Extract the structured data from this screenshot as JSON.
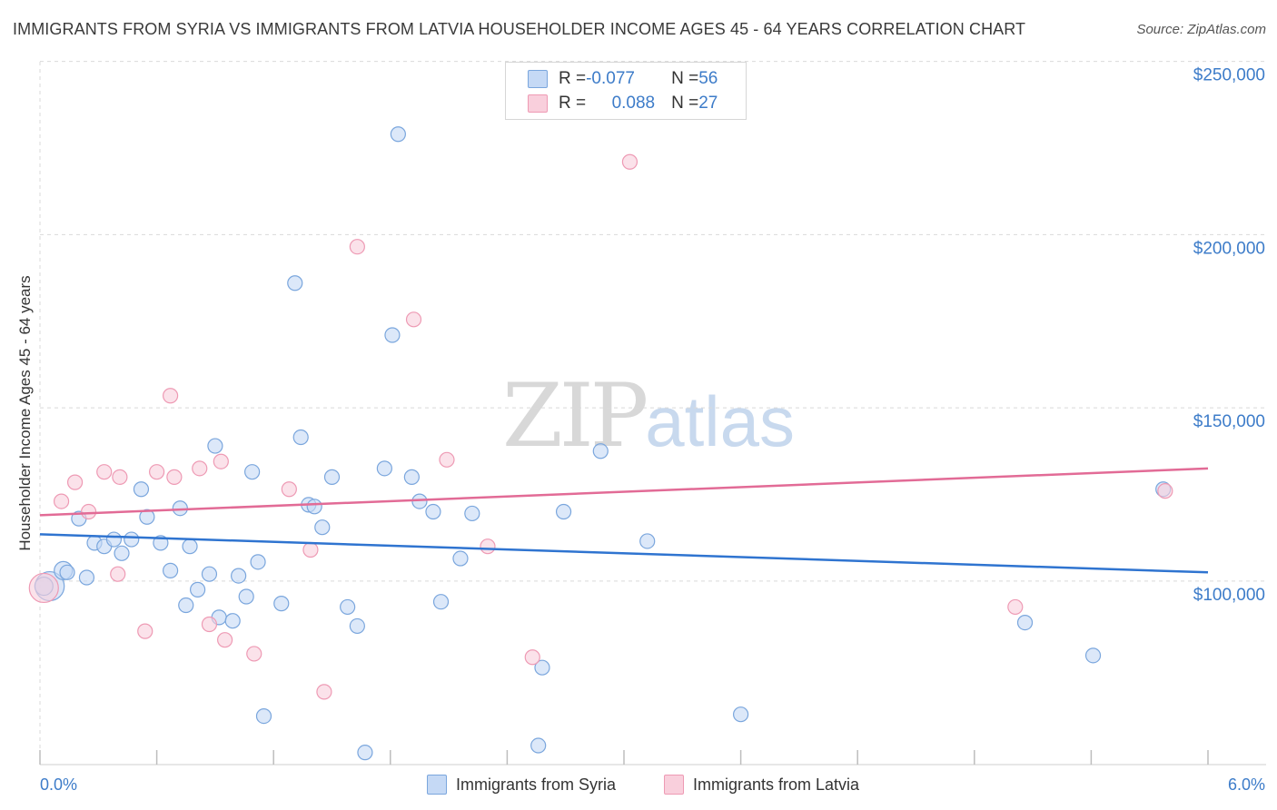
{
  "title": "IMMIGRANTS FROM SYRIA VS IMMIGRANTS FROM LATVIA HOUSEHOLDER INCOME AGES 45 - 64 YEARS CORRELATION CHART",
  "source": "Source: ZipAtlas.com",
  "watermark": {
    "zip": "ZIP",
    "atlas": "atlas"
  },
  "legend": {
    "rows": [
      {
        "r_label": "R = ",
        "r_value": "-0.077",
        "n_label": "N = ",
        "n_value": "56"
      },
      {
        "r_label": "R = ",
        "r_value": "0.088",
        "n_label": "N = ",
        "n_value": "27"
      }
    ]
  },
  "colors": {
    "syria_fill": "#c5d9f5",
    "syria_stroke": "#7aa6dd",
    "syria_line": "#2f74d0",
    "latvia_fill": "#f9cfdc",
    "latvia_stroke": "#ee9ab4",
    "latvia_line": "#e26b96",
    "grid": "#d9d9d9",
    "tick_text": "#3d7cc9"
  },
  "chart_data": {
    "type": "scatter",
    "title": "IMMIGRANTS FROM SYRIA VS IMMIGRANTS FROM LATVIA HOUSEHOLDER INCOME AGES 45 - 64 YEARS CORRELATION CHART",
    "xlabel": "",
    "ylabel": "Householder Income Ages 45 - 64 years",
    "xlim": [
      0.0,
      6.0
    ],
    "ylim": [
      47000,
      252000
    ],
    "x_tick_labels": [
      "0.0%",
      "6.0%"
    ],
    "y_ticks": [
      100000,
      150000,
      200000,
      250000
    ],
    "y_tick_labels": [
      "$100,000",
      "$150,000",
      "$200,000",
      "$250,000"
    ],
    "grid": true,
    "legend_position": "top-center",
    "series": [
      {
        "name": "Immigrants from Syria",
        "color": "#7aa6dd",
        "trend": [
          [
            0.0,
            113500
          ],
          [
            6.0,
            102500
          ]
        ],
        "points": [
          [
            0.05,
            98.5,
            16
          ],
          [
            0.12,
            103,
            10
          ],
          [
            0.14,
            102.5,
            8
          ],
          [
            0.2,
            118,
            8
          ],
          [
            0.24,
            101,
            8
          ],
          [
            0.28,
            111,
            8
          ],
          [
            0.33,
            110,
            8
          ],
          [
            0.38,
            112,
            8
          ],
          [
            0.42,
            108,
            8
          ],
          [
            0.47,
            112,
            8
          ],
          [
            0.52,
            126.5,
            8
          ],
          [
            0.55,
            118.5,
            8
          ],
          [
            0.62,
            111,
            8
          ],
          [
            0.67,
            103,
            8
          ],
          [
            0.72,
            121,
            8
          ],
          [
            0.75,
            93,
            8
          ],
          [
            0.77,
            110,
            8
          ],
          [
            0.81,
            97.5,
            8
          ],
          [
            0.87,
            102,
            8
          ],
          [
            0.9,
            139,
            8
          ],
          [
            0.92,
            89.5,
            8
          ],
          [
            0.99,
            88.5,
            8
          ],
          [
            1.02,
            101.5,
            8
          ],
          [
            1.06,
            95.5,
            8
          ],
          [
            1.09,
            131.5,
            8
          ],
          [
            1.12,
            105.5,
            8
          ],
          [
            1.15,
            61,
            8
          ],
          [
            1.24,
            93.5,
            8
          ],
          [
            1.31,
            186,
            8
          ],
          [
            1.34,
            141.5,
            8
          ],
          [
            1.38,
            122,
            8
          ],
          [
            1.41,
            121.5,
            8
          ],
          [
            1.45,
            115.5,
            8
          ],
          [
            1.5,
            130,
            8
          ],
          [
            1.58,
            92.5,
            8
          ],
          [
            1.63,
            87,
            8
          ],
          [
            1.67,
            50.5,
            8
          ],
          [
            1.77,
            132.5,
            8
          ],
          [
            1.81,
            171,
            8
          ],
          [
            1.84,
            229,
            8
          ],
          [
            1.91,
            130,
            8
          ],
          [
            1.95,
            123,
            8
          ],
          [
            2.02,
            120,
            8
          ],
          [
            2.06,
            94,
            8
          ],
          [
            2.16,
            106.5,
            8
          ],
          [
            2.22,
            119.5,
            8
          ],
          [
            2.56,
            52.5,
            8
          ],
          [
            2.58,
            75,
            8
          ],
          [
            2.69,
            120,
            8
          ],
          [
            2.88,
            137.5,
            8
          ],
          [
            3.12,
            111.5,
            8
          ],
          [
            3.6,
            61.5,
            8
          ],
          [
            5.06,
            88,
            8
          ],
          [
            5.41,
            78.5,
            8
          ],
          [
            5.77,
            126.5,
            8
          ],
          [
            0.02,
            98.5,
            10
          ]
        ]
      },
      {
        "name": "Immigrants from Latvia",
        "color": "#ee9ab4",
        "trend": [
          [
            0.0,
            119000
          ],
          [
            6.0,
            132500
          ]
        ],
        "points": [
          [
            0.02,
            98,
            16
          ],
          [
            0.11,
            123,
            8
          ],
          [
            0.18,
            128.5,
            8
          ],
          [
            0.25,
            120,
            8
          ],
          [
            0.33,
            131.5,
            8
          ],
          [
            0.4,
            102,
            8
          ],
          [
            0.41,
            130,
            8
          ],
          [
            0.54,
            85.5,
            8
          ],
          [
            0.6,
            131.5,
            8
          ],
          [
            0.67,
            153.5,
            8
          ],
          [
            0.69,
            130,
            8
          ],
          [
            0.82,
            132.5,
            8
          ],
          [
            0.87,
            87.5,
            8
          ],
          [
            0.93,
            134.5,
            8
          ],
          [
            0.95,
            83,
            8
          ],
          [
            1.1,
            79,
            8
          ],
          [
            1.28,
            126.5,
            8
          ],
          [
            1.39,
            109,
            8
          ],
          [
            1.46,
            68,
            8
          ],
          [
            1.63,
            196.5,
            8
          ],
          [
            1.92,
            175.5,
            8
          ],
          [
            2.09,
            135,
            8
          ],
          [
            2.3,
            110,
            8
          ],
          [
            2.53,
            78,
            8
          ],
          [
            3.03,
            221,
            8
          ],
          [
            5.01,
            92.5,
            8
          ],
          [
            5.78,
            126,
            8
          ]
        ]
      }
    ]
  },
  "bottom_legend": [
    "Immigrants from Syria",
    "Immigrants from Latvia"
  ]
}
